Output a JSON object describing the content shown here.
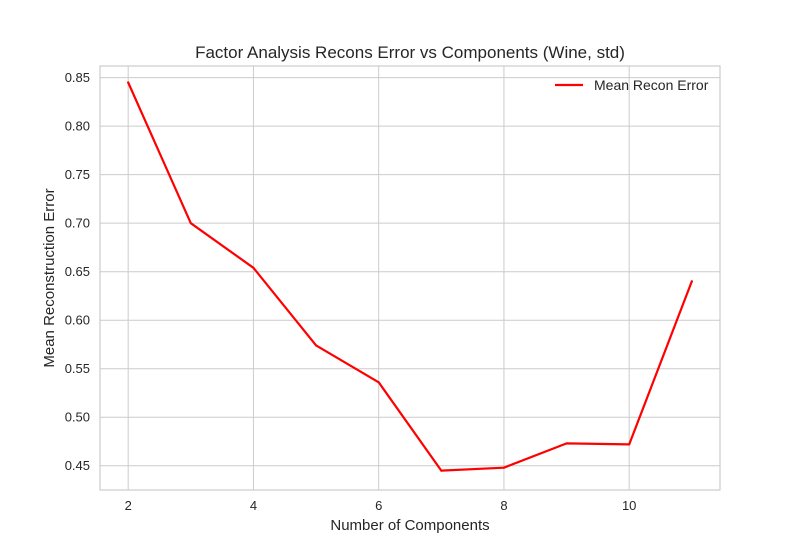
{
  "chart_data": {
    "type": "line",
    "title": "Factor Analysis Recons Error vs Components (Wine, std)",
    "xlabel": "Number of Components",
    "ylabel": "Mean Reconstruction Error",
    "xlim": [
      1.55,
      11.45
    ],
    "ylim": [
      0.425,
      0.862
    ],
    "xticks": [
      2,
      4,
      6,
      8,
      10
    ],
    "yticks": [
      0.45,
      0.5,
      0.55,
      0.6,
      0.65,
      0.7,
      0.75,
      0.8,
      0.85
    ],
    "grid": true,
    "legend_position": "top-right",
    "series": [
      {
        "name": "Mean Recon Error",
        "color": "#ff0000",
        "x": [
          2,
          3,
          4,
          5,
          6,
          7,
          8,
          9,
          10,
          11
        ],
        "y": [
          0.845,
          0.7,
          0.654,
          0.574,
          0.536,
          0.445,
          0.448,
          0.473,
          0.472,
          0.64
        ]
      }
    ]
  }
}
